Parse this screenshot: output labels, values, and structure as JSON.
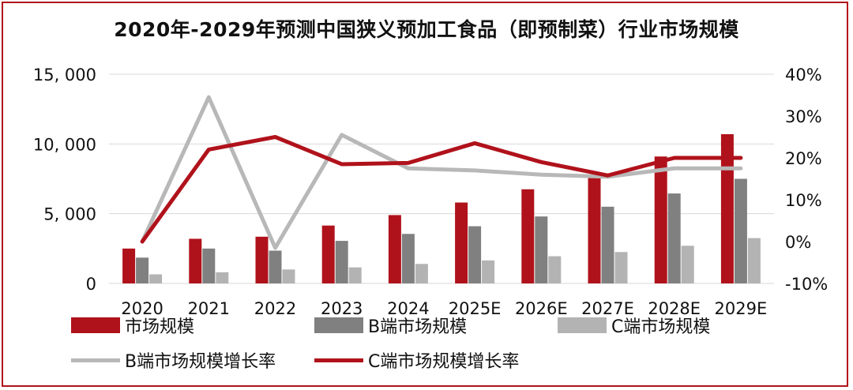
{
  "chart_data": {
    "type": "bar",
    "title": "2020年-2029年预测中国狭义预加工食品（即预制菜）行业市场规模",
    "categories": [
      "2020",
      "2021",
      "2022",
      "2023",
      "2024",
      "2025E",
      "2026E",
      "2027E",
      "2028E",
      "2029E"
    ],
    "left_axis": {
      "ylim": [
        0,
        15000
      ],
      "ticks": [
        "0",
        "5, 000",
        "10, 000",
        "15, 000"
      ],
      "tick_values": [
        0,
        5000,
        10000,
        15000
      ]
    },
    "right_axis": {
      "ylim": [
        -10,
        40
      ],
      "ticks": [
        "-10%",
        "0%",
        "10%",
        "20%",
        "30%",
        "40%"
      ],
      "tick_values": [
        -10,
        0,
        10,
        20,
        30,
        40
      ]
    },
    "series": [
      {
        "name": "市场规模",
        "type": "bar",
        "axis": "left",
        "color": "#b0121b",
        "values": [
          2500,
          3200,
          3350,
          4150,
          4900,
          5800,
          6750,
          7750,
          9100,
          10700
        ]
      },
      {
        "name": "B端市场规模",
        "type": "bar",
        "axis": "left",
        "color": "#808080",
        "values": [
          1850,
          2500,
          2350,
          3050,
          3550,
          4100,
          4800,
          5500,
          6450,
          7500
        ]
      },
      {
        "name": "C端市场规模",
        "type": "bar",
        "axis": "left",
        "color": "#b3b3b3",
        "values": [
          650,
          800,
          1000,
          1150,
          1400,
          1650,
          1950,
          2250,
          2700,
          3250
        ]
      },
      {
        "name": "B端市场规模增长率",
        "type": "line",
        "axis": "right",
        "color": "#b8b8b8",
        "values": [
          0,
          34.5,
          -1.5,
          25.5,
          17.5,
          17,
          16,
          15.5,
          17.5,
          17.5
        ]
      },
      {
        "name": "C端市场规模增长率",
        "type": "line",
        "axis": "right",
        "color": "#b0121b",
        "values": [
          0,
          22,
          25,
          18.5,
          18.8,
          23.5,
          19,
          15.8,
          20,
          20
        ]
      }
    ],
    "legend_position": "bottom",
    "grid": "horizontal"
  }
}
